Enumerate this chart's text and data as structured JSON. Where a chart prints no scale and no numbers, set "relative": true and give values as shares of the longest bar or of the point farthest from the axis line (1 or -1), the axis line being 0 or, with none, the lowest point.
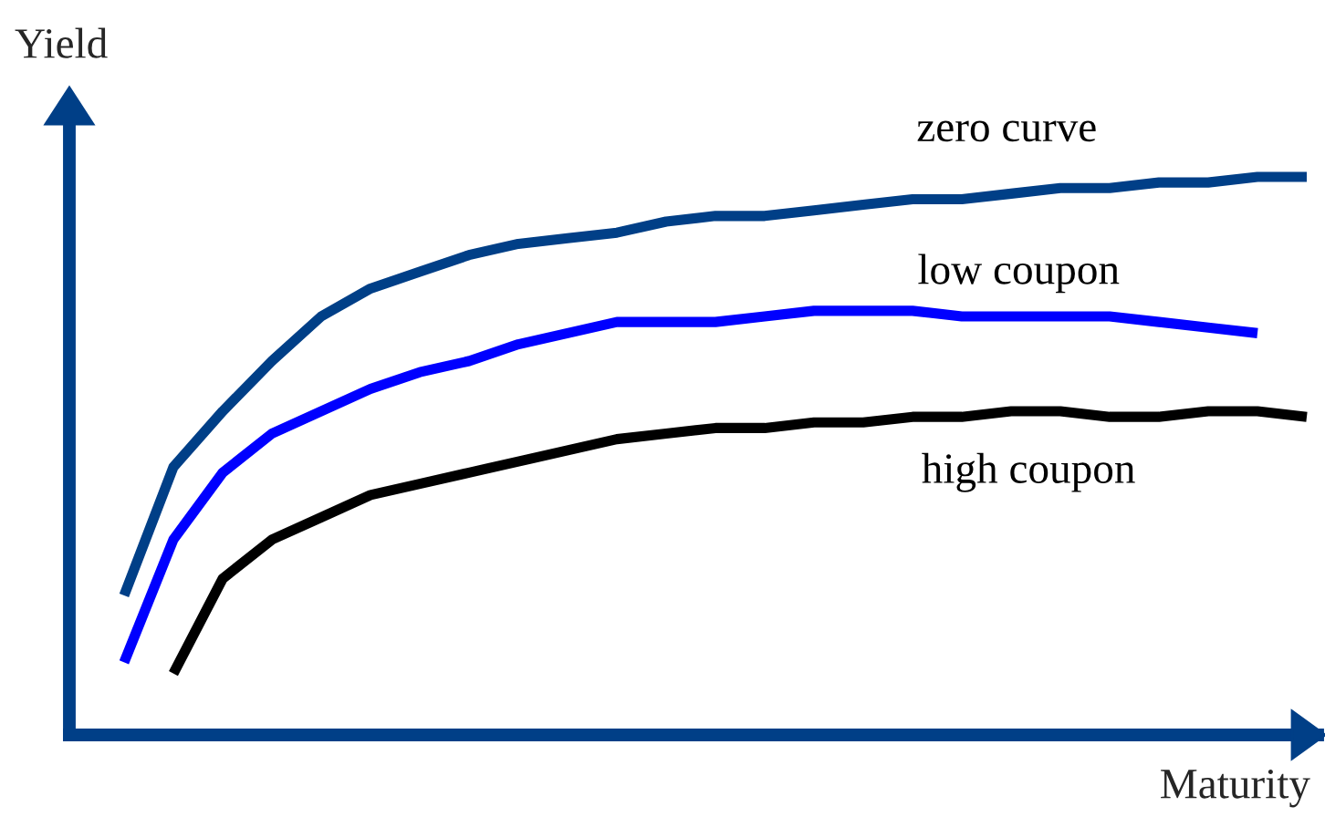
{
  "chart_data": {
    "type": "line",
    "relative": true,
    "xlabel": "Maturity",
    "ylabel": "Yield",
    "legend": false,
    "marker": "none",
    "line_style": "solid",
    "categories": [
      null,
      null,
      null,
      null,
      null,
      null,
      null,
      null,
      null,
      null,
      null,
      null,
      null,
      null,
      null,
      null,
      null,
      null,
      null,
      null,
      null,
      null,
      null,
      null,
      null
    ],
    "series": [
      {
        "name": "zero curve",
        "color": "#003f87",
        "values": [
          0.25,
          0.48,
          0.58,
          0.67,
          0.75,
          0.8,
          0.83,
          0.86,
          0.88,
          0.89,
          0.9,
          0.92,
          0.93,
          0.93,
          0.94,
          0.95,
          0.96,
          0.96,
          0.97,
          0.98,
          0.98,
          0.99,
          0.99,
          1.0,
          1.0
        ]
      },
      {
        "name": "low coupon",
        "color": "#0000ff",
        "values": [
          0.13,
          0.35,
          0.47,
          0.54,
          0.58,
          0.62,
          0.65,
          0.67,
          0.7,
          0.72,
          0.74,
          0.74,
          0.74,
          0.75,
          0.76,
          0.76,
          0.76,
          0.75,
          0.75,
          0.75,
          0.75,
          0.74,
          0.73,
          0.72,
          null
        ]
      },
      {
        "name": "high coupon",
        "color": "#000000",
        "values": [
          null,
          0.11,
          0.28,
          0.35,
          0.39,
          0.43,
          0.45,
          0.47,
          0.49,
          0.51,
          0.53,
          0.54,
          0.55,
          0.55,
          0.56,
          0.56,
          0.57,
          0.57,
          0.58,
          0.58,
          0.57,
          0.57,
          0.58,
          0.58,
          0.57
        ]
      }
    ]
  }
}
